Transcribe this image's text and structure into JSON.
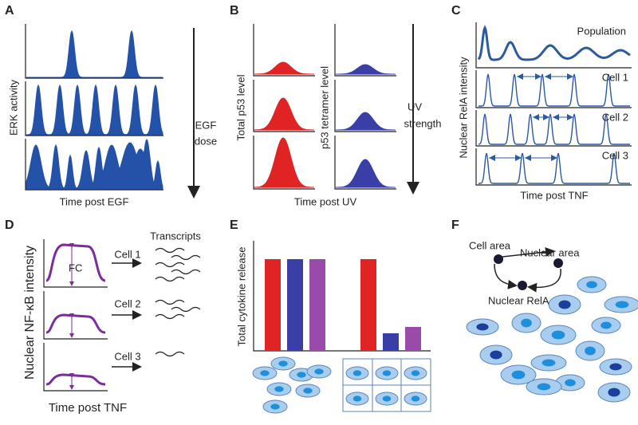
{
  "panels": {
    "a": {
      "letter": "A",
      "y_label": "ERK activity",
      "arrow_label": [
        "EGF",
        "dose"
      ],
      "x_label": "Time post EGF"
    },
    "b": {
      "letter": "B",
      "y_label_left": "Total p53 level",
      "y_label_right": "p53 tetramer level",
      "arrow_label": [
        "UV",
        "strength"
      ],
      "x_label": "Time post UV"
    },
    "c": {
      "letter": "C",
      "y_label": "Nuclear RelA intensity",
      "rows": [
        "Population",
        "Cell 1",
        "Cell 2",
        "Cell 3"
      ],
      "x_label": "Time post TNF"
    },
    "d": {
      "letter": "D",
      "y_label": "Nuclear NF-κB intensity",
      "header": "Transcripts",
      "fc": "FC",
      "cells": [
        "Cell 1",
        "Cell 2",
        "Cell 3"
      ],
      "x_label": "Time post TNF"
    },
    "e": {
      "letter": "E",
      "y_label": "Total cytokine release"
    },
    "f": {
      "letter": "F",
      "nodes": [
        "Cell area",
        "Nuclear area",
        "Nuclear RelA"
      ]
    }
  }
}
